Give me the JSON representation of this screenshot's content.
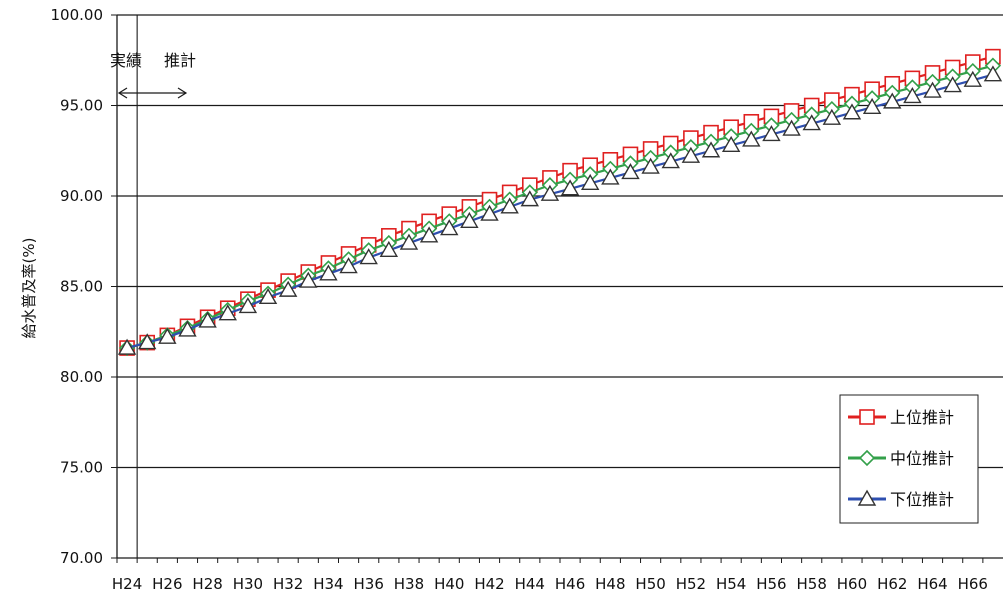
{
  "chart_data": {
    "type": "line",
    "ylabel": "給水普及率(%)",
    "ylim": [
      70,
      100
    ],
    "yticks": [
      "70.00",
      "75.00",
      "80.00",
      "85.00",
      "90.00",
      "95.00",
      "100.00"
    ],
    "categories": [
      "H24",
      "H25",
      "H26",
      "H27",
      "H28",
      "H29",
      "H30",
      "H31",
      "H32",
      "H33",
      "H34",
      "H35",
      "H36",
      "H37",
      "H38",
      "H39",
      "H40",
      "H41",
      "H42",
      "H43",
      "H44",
      "H45",
      "H46",
      "H47",
      "H48",
      "H49",
      "H50",
      "H51",
      "H52",
      "H53",
      "H54",
      "H55",
      "H56",
      "H57",
      "H58",
      "H59",
      "H60",
      "H61",
      "H62",
      "H63",
      "H64",
      "H65",
      "H66",
      "H67"
    ],
    "tick_labels": [
      "H24",
      "H26",
      "H28",
      "H30",
      "H32",
      "H34",
      "H36",
      "H38",
      "H40",
      "H42",
      "H44",
      "H46",
      "H48",
      "H50",
      "H52",
      "H54",
      "H56",
      "H58",
      "H60",
      "H62",
      "H64",
      "H66"
    ],
    "grid": true,
    "legend_position": "bottom-right",
    "annotations": {
      "actual": "実績",
      "forecast": "推計"
    },
    "series": [
      {
        "name": "上位推計",
        "color": "#e02020",
        "marker": "square",
        "values": [
          81.6,
          81.9,
          82.3,
          82.8,
          83.3,
          83.8,
          84.3,
          84.8,
          85.3,
          85.8,
          86.3,
          86.8,
          87.3,
          87.8,
          88.2,
          88.6,
          89.0,
          89.4,
          89.8,
          90.2,
          90.6,
          91.0,
          91.4,
          91.7,
          92.0,
          92.3,
          92.6,
          92.9,
          93.2,
          93.5,
          93.8,
          94.1,
          94.4,
          94.7,
          95.0,
          95.3,
          95.6,
          95.9,
          96.2,
          96.5,
          96.8,
          97.1,
          97.4,
          97.7
        ]
      },
      {
        "name": "中位推計",
        "color": "#33a04a",
        "marker": "diamond",
        "values": [
          81.6,
          81.9,
          82.3,
          82.7,
          83.2,
          83.7,
          84.2,
          84.6,
          85.1,
          85.6,
          86.0,
          86.5,
          87.0,
          87.4,
          87.8,
          88.2,
          88.6,
          89.0,
          89.4,
          89.8,
          90.2,
          90.6,
          90.9,
          91.2,
          91.5,
          91.8,
          92.1,
          92.4,
          92.7,
          93.0,
          93.3,
          93.6,
          93.9,
          94.2,
          94.5,
          94.8,
          95.1,
          95.4,
          95.7,
          96.0,
          96.3,
          96.6,
          96.9,
          97.2
        ]
      },
      {
        "name": "下位推計",
        "color": "#2e4fb0",
        "marker": "triangle",
        "values": [
          81.6,
          81.9,
          82.2,
          82.6,
          83.1,
          83.5,
          83.9,
          84.4,
          84.8,
          85.3,
          85.7,
          86.1,
          86.6,
          87.0,
          87.4,
          87.8,
          88.2,
          88.6,
          89.0,
          89.4,
          89.8,
          90.1,
          90.4,
          90.7,
          91.0,
          91.3,
          91.6,
          91.9,
          92.2,
          92.5,
          92.8,
          93.1,
          93.4,
          93.7,
          94.0,
          94.3,
          94.6,
          94.9,
          95.2,
          95.5,
          95.8,
          96.1,
          96.4,
          96.7
        ]
      }
    ]
  }
}
